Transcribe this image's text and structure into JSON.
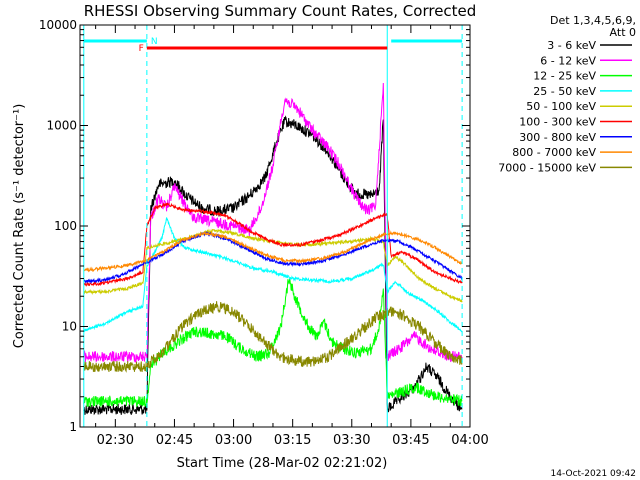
{
  "chart_data": {
    "type": "line",
    "title": "RHESSI Observing Summary Count Rates, Corrected",
    "xlabel": "Start Time (28-Mar-02 02:21:02)",
    "ylabel": "Corrected Count Rate (s⁻¹ detector⁻¹)",
    "yscale": "log",
    "ylim": [
      1,
      10000
    ],
    "y_ticks": [
      {
        "value": 1,
        "label": "1"
      },
      {
        "value": 10,
        "label": "10"
      },
      {
        "value": 100,
        "label": "100"
      },
      {
        "value": 1000,
        "label": "1000"
      },
      {
        "value": 10000,
        "label": "10000"
      }
    ],
    "xlim": [
      "02:21:02",
      "04:00"
    ],
    "x_ticks": [
      {
        "value": "02:30",
        "label": "02:30"
      },
      {
        "value": "02:45",
        "label": "02:45"
      },
      {
        "value": "03:00",
        "label": "03:00"
      },
      {
        "value": "03:15",
        "label": "03:15"
      },
      {
        "value": "03:30",
        "label": "03:30"
      },
      {
        "value": "03:45",
        "label": "03:45"
      },
      {
        "value": "04:00",
        "label": "04:00"
      }
    ],
    "legend_header": [
      "Det 1,3,4,5,6,9,",
      "Att 0"
    ],
    "legend_position": "right",
    "series": [
      {
        "name": "3 - 6 keV",
        "color": "#000000",
        "points": [
          [
            "02:22",
            1.5
          ],
          [
            "02:38",
            1.5
          ],
          [
            "02:39",
            150
          ],
          [
            "02:41",
            260
          ],
          [
            "02:45",
            280
          ],
          [
            "02:48",
            200
          ],
          [
            "02:52",
            150
          ],
          [
            "02:56",
            140
          ],
          [
            "03:00",
            150
          ],
          [
            "03:04",
            200
          ],
          [
            "03:08",
            300
          ],
          [
            "03:11",
            700
          ],
          [
            "03:13",
            1100
          ],
          [
            "03:16",
            1000
          ],
          [
            "03:20",
            800
          ],
          [
            "03:24",
            550
          ],
          [
            "03:28",
            300
          ],
          [
            "03:31",
            210
          ],
          [
            "03:35",
            200
          ],
          [
            "03:37",
            230
          ],
          [
            "03:38",
            1200
          ],
          [
            "03:39",
            1.5
          ],
          [
            "03:46",
            2.5
          ],
          [
            "03:49",
            4
          ],
          [
            "03:52",
            3
          ],
          [
            "03:55",
            2
          ],
          [
            "03:58",
            1.5
          ]
        ]
      },
      {
        "name": "6 - 12 keV",
        "color": "#ff00ff",
        "points": [
          [
            "02:22",
            5
          ],
          [
            "02:38",
            5
          ],
          [
            "02:39",
            120
          ],
          [
            "02:41",
            190
          ],
          [
            "02:43",
            150
          ],
          [
            "02:45",
            250
          ],
          [
            "02:47",
            180
          ],
          [
            "02:50",
            120
          ],
          [
            "02:55",
            110
          ],
          [
            "03:00",
            100
          ],
          [
            "03:04",
            90
          ],
          [
            "03:07",
            150
          ],
          [
            "03:10",
            400
          ],
          [
            "03:13",
            1800
          ],
          [
            "03:16",
            1500
          ],
          [
            "03:20",
            900
          ],
          [
            "03:24",
            600
          ],
          [
            "03:27",
            400
          ],
          [
            "03:30",
            230
          ],
          [
            "03:32",
            170
          ],
          [
            "03:34",
            140
          ],
          [
            "03:36",
            160
          ],
          [
            "03:38",
            2500
          ],
          [
            "03:39",
            5
          ],
          [
            "03:42",
            6
          ],
          [
            "03:46",
            8
          ],
          [
            "03:50",
            6
          ],
          [
            "03:55",
            5
          ],
          [
            "03:58",
            5
          ]
        ]
      },
      {
        "name": "12 - 25 keV",
        "color": "#00ff00",
        "points": [
          [
            "02:22",
            1.8
          ],
          [
            "02:38",
            1.8
          ],
          [
            "02:39",
            4
          ],
          [
            "02:42",
            5.5
          ],
          [
            "02:46",
            7
          ],
          [
            "02:50",
            9
          ],
          [
            "02:54",
            8.5
          ],
          [
            "02:58",
            8
          ],
          [
            "03:02",
            6
          ],
          [
            "03:06",
            5
          ],
          [
            "03:09",
            5.5
          ],
          [
            "03:12",
            10
          ],
          [
            "03:14",
            30
          ],
          [
            "03:16",
            18
          ],
          [
            "03:19",
            10
          ],
          [
            "03:21",
            8
          ],
          [
            "03:23",
            11
          ],
          [
            "03:25",
            7
          ],
          [
            "03:28",
            6
          ],
          [
            "03:31",
            5.5
          ],
          [
            "03:35",
            6
          ],
          [
            "03:37",
            10
          ],
          [
            "03:38",
            25
          ],
          [
            "03:39",
            2
          ],
          [
            "03:46",
            2.5
          ],
          [
            "03:52",
            2
          ],
          [
            "03:58",
            1.8
          ]
        ]
      },
      {
        "name": "25 - 50 keV",
        "color": "#00ffff",
        "points": [
          [
            "02:22",
            9
          ],
          [
            "02:28",
            11
          ],
          [
            "02:33",
            14
          ],
          [
            "02:37",
            16
          ],
          [
            "02:38",
            40
          ],
          [
            "02:40",
            55
          ],
          [
            "02:42",
            80
          ],
          [
            "02:43",
            120
          ],
          [
            "02:45",
            75
          ],
          [
            "02:48",
            60
          ],
          [
            "02:52",
            55
          ],
          [
            "02:56",
            50
          ],
          [
            "03:00",
            45
          ],
          [
            "03:05",
            38
          ],
          [
            "03:10",
            35
          ],
          [
            "03:15",
            30
          ],
          [
            "03:20",
            29
          ],
          [
            "03:25",
            28
          ],
          [
            "03:30",
            30
          ],
          [
            "03:35",
            36
          ],
          [
            "03:38",
            42
          ],
          [
            "03:39",
            22
          ],
          [
            "03:41",
            28
          ],
          [
            "03:44",
            22
          ],
          [
            "03:48",
            18
          ],
          [
            "03:52",
            14
          ],
          [
            "03:55",
            11
          ],
          [
            "03:58",
            9
          ]
        ]
      },
      {
        "name": "50 - 100 keV",
        "color": "#cccc00",
        "points": [
          [
            "02:22",
            22
          ],
          [
            "02:27",
            22
          ],
          [
            "02:33",
            24
          ],
          [
            "02:37",
            27
          ],
          [
            "02:38",
            60
          ],
          [
            "02:41",
            65
          ],
          [
            "02:45",
            70
          ],
          [
            "02:50",
            80
          ],
          [
            "02:55",
            90
          ],
          [
            "03:00",
            85
          ],
          [
            "03:05",
            75
          ],
          [
            "03:10",
            70
          ],
          [
            "03:15",
            65
          ],
          [
            "03:20",
            65
          ],
          [
            "03:25",
            68
          ],
          [
            "03:30",
            70
          ],
          [
            "03:35",
            75
          ],
          [
            "03:38",
            70
          ],
          [
            "03:39",
            40
          ],
          [
            "03:41",
            50
          ],
          [
            "03:44",
            40
          ],
          [
            "03:47",
            30
          ],
          [
            "03:51",
            24
          ],
          [
            "03:55",
            20
          ],
          [
            "03:58",
            18
          ]
        ]
      },
      {
        "name": "100 - 300 keV",
        "color": "#ff0000",
        "points": [
          [
            "02:22",
            26
          ],
          [
            "02:27",
            27
          ],
          [
            "02:33",
            30
          ],
          [
            "02:37",
            35
          ],
          [
            "02:38",
            100
          ],
          [
            "02:40",
            150
          ],
          [
            "02:43",
            165
          ],
          [
            "02:47",
            145
          ],
          [
            "02:52",
            140
          ],
          [
            "02:57",
            130
          ],
          [
            "03:00",
            115
          ],
          [
            "03:04",
            90
          ],
          [
            "03:08",
            75
          ],
          [
            "03:12",
            65
          ],
          [
            "03:17",
            65
          ],
          [
            "03:22",
            72
          ],
          [
            "03:27",
            82
          ],
          [
            "03:32",
            100
          ],
          [
            "03:36",
            120
          ],
          [
            "03:39",
            130
          ],
          [
            "03:40",
            50
          ],
          [
            "03:43",
            55
          ],
          [
            "03:47",
            45
          ],
          [
            "03:51",
            35
          ],
          [
            "03:55",
            30
          ],
          [
            "03:58",
            27
          ]
        ]
      },
      {
        "name": "300 - 800 keV",
        "color": "#0000ff",
        "points": [
          [
            "02:22",
            28
          ],
          [
            "02:27",
            29
          ],
          [
            "02:32",
            33
          ],
          [
            "02:37",
            42
          ],
          [
            "02:42",
            52
          ],
          [
            "02:47",
            70
          ],
          [
            "02:53",
            85
          ],
          [
            "02:58",
            75
          ],
          [
            "03:03",
            60
          ],
          [
            "03:08",
            48
          ],
          [
            "03:13",
            42
          ],
          [
            "03:18",
            42
          ],
          [
            "03:23",
            45
          ],
          [
            "03:28",
            52
          ],
          [
            "03:33",
            62
          ],
          [
            "03:38",
            72
          ],
          [
            "03:41",
            72
          ],
          [
            "03:45",
            62
          ],
          [
            "03:49",
            50
          ],
          [
            "03:53",
            40
          ],
          [
            "03:58",
            30
          ]
        ]
      },
      {
        "name": "800 - 7000 keV",
        "color": "#ff8800",
        "points": [
          [
            "02:22",
            36
          ],
          [
            "02:27",
            38
          ],
          [
            "02:32",
            40
          ],
          [
            "02:37",
            44
          ],
          [
            "02:42",
            55
          ],
          [
            "02:47",
            72
          ],
          [
            "02:53",
            85
          ],
          [
            "02:58",
            78
          ],
          [
            "03:03",
            63
          ],
          [
            "03:08",
            52
          ],
          [
            "03:13",
            45
          ],
          [
            "03:18",
            45
          ],
          [
            "03:23",
            48
          ],
          [
            "03:28",
            55
          ],
          [
            "03:33",
            68
          ],
          [
            "03:38",
            82
          ],
          [
            "03:41",
            85
          ],
          [
            "03:45",
            78
          ],
          [
            "03:49",
            68
          ],
          [
            "03:53",
            55
          ],
          [
            "03:58",
            42
          ]
        ]
      },
      {
        "name": "7000 - 15000 keV",
        "color": "#888800",
        "points": [
          [
            "02:22",
            4
          ],
          [
            "02:38",
            4
          ],
          [
            "02:39",
            4.5
          ],
          [
            "02:42",
            5.5
          ],
          [
            "02:45",
            8
          ],
          [
            "02:48",
            11
          ],
          [
            "02:52",
            14
          ],
          [
            "02:56",
            16
          ],
          [
            "03:00",
            14
          ],
          [
            "03:04",
            10
          ],
          [
            "03:08",
            7
          ],
          [
            "03:12",
            5
          ],
          [
            "03:16",
            4.5
          ],
          [
            "03:20",
            4.5
          ],
          [
            "03:24",
            5
          ],
          [
            "03:28",
            6.5
          ],
          [
            "03:32",
            9
          ],
          [
            "03:36",
            12
          ],
          [
            "03:40",
            14
          ],
          [
            "03:43",
            13
          ],
          [
            "03:47",
            10
          ],
          [
            "03:51",
            7
          ],
          [
            "03:55",
            5
          ],
          [
            "03:58",
            4.5
          ]
        ]
      }
    ],
    "attenuator_bar": {
      "label": "F",
      "start": "02:38",
      "end": "03:39",
      "color": "#ff0000"
    },
    "night_bars": [
      {
        "start": "02:22",
        "end": "02:38",
        "color": "#00ffff",
        "label": "N"
      },
      {
        "start": "03:40",
        "end": "03:58",
        "color": "#00ffff"
      }
    ],
    "night_lines": [
      {
        "time": "02:22",
        "style": "solid",
        "color": "#00ffff"
      },
      {
        "time": "02:38",
        "style": "dashed",
        "color": "#00ffff"
      },
      {
        "time": "03:39",
        "style": "solid",
        "color": "#00ffff"
      },
      {
        "time": "03:58",
        "style": "dashed",
        "color": "#00ffff"
      }
    ],
    "date_stamp": "14-Oct-2021 09:42"
  }
}
